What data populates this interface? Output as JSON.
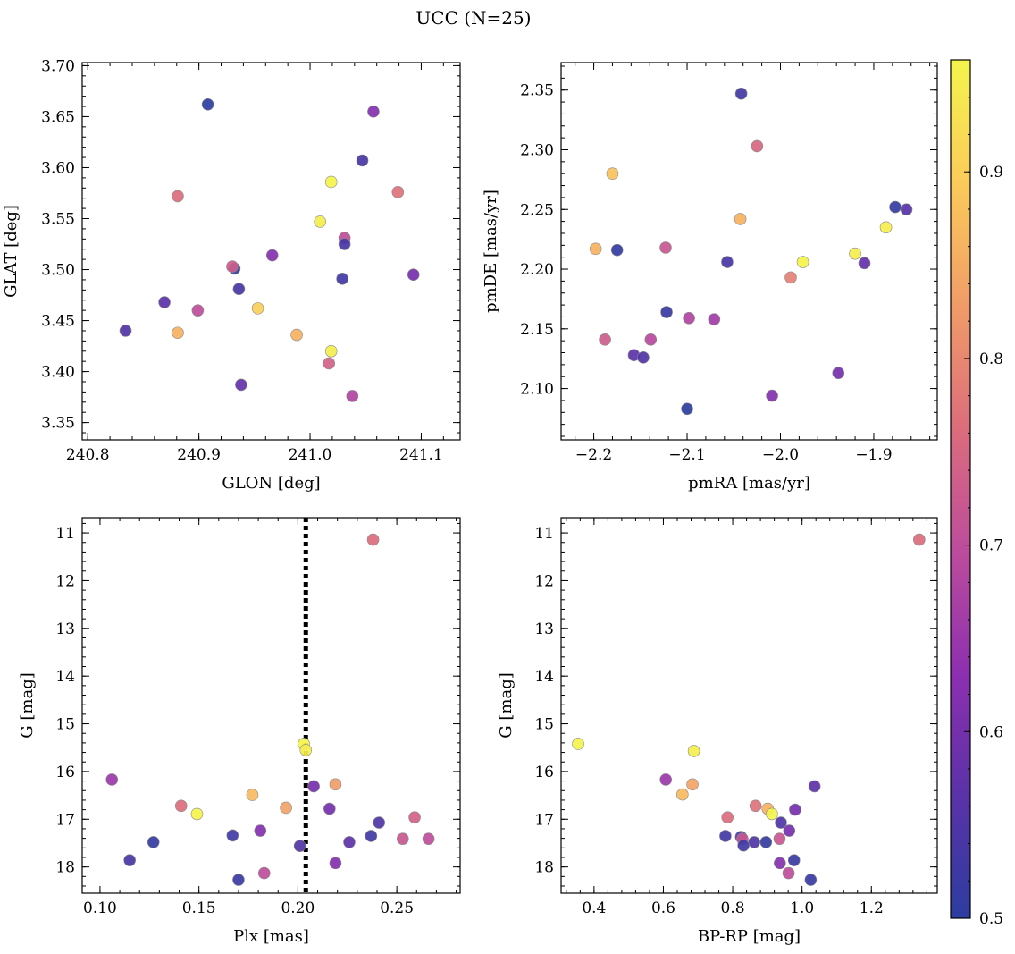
{
  "figure_title": "UCC (N=25)",
  "colorbar": {
    "range": [
      0.5,
      0.96
    ],
    "ticks": [
      0.5,
      0.6,
      0.7,
      0.8,
      0.9
    ],
    "tick_labels": [
      "0.5",
      "0.6",
      "0.7",
      "0.8",
      "0.9"
    ],
    "colors": [
      "#2c3da0",
      "#5a32a8",
      "#8d2fb0",
      "#bd4c9c",
      "#dc6d7c",
      "#f19c68",
      "#fbcb5a",
      "#f4f44c"
    ]
  },
  "chart_data": [
    {
      "type": "scatter",
      "name": "glon-glat",
      "xlabel": "GLON [deg]",
      "ylabel": "GLAT [deg]",
      "xlim": [
        240.795,
        241.135
      ],
      "ylim": [
        3.333,
        3.703
      ],
      "xticks": [
        240.8,
        240.9,
        241.0,
        241.1
      ],
      "xtick_labels": [
        "240.8",
        "240.9",
        "241.0",
        "241.1"
      ],
      "yticks": [
        3.35,
        3.4,
        3.45,
        3.5,
        3.55,
        3.6,
        3.65,
        3.7
      ],
      "ytick_labels": [
        "3.35",
        "3.40",
        "3.45",
        "3.50",
        "3.55",
        "3.60",
        "3.65",
        "3.70"
      ],
      "x": [
        240.908,
        240.834,
        240.869,
        240.932,
        240.936,
        240.938,
        240.899,
        240.93,
        240.881,
        240.881,
        240.953,
        240.966,
        240.988,
        241.009,
        241.019,
        241.019,
        241.017,
        241.031,
        241.031,
        241.029,
        241.038,
        241.047,
        241.057,
        241.079,
        241.093
      ],
      "y": [
        3.662,
        3.44,
        3.468,
        3.501,
        3.481,
        3.387,
        3.46,
        3.503,
        3.572,
        3.438,
        3.462,
        3.514,
        3.436,
        3.547,
        3.586,
        3.42,
        3.408,
        3.531,
        3.525,
        3.491,
        3.376,
        3.607,
        3.655,
        3.576,
        3.495
      ],
      "c": [
        0.5,
        0.55,
        0.57,
        0.52,
        0.54,
        0.58,
        0.7,
        0.73,
        0.76,
        0.86,
        0.9,
        0.62,
        0.86,
        0.95,
        0.96,
        0.95,
        0.74,
        0.7,
        0.54,
        0.53,
        0.68,
        0.54,
        0.62,
        0.77,
        0.6
      ]
    },
    {
      "type": "scatter",
      "name": "pm",
      "xlabel": "pmRA [mas/yr]",
      "ylabel": "pmDE [mas/yr]",
      "xlim": [
        -2.235,
        -1.832
      ],
      "ylim": [
        2.057,
        2.373
      ],
      "xticks": [
        -2.2,
        -2.1,
        -2.0,
        -1.9
      ],
      "xtick_labels": [
        "−2.2",
        "−2.1",
        "−2.0",
        "−1.9"
      ],
      "yticks": [
        2.1,
        2.15,
        2.2,
        2.25,
        2.3,
        2.35
      ],
      "ytick_labels": [
        "2.10",
        "2.15",
        "2.20",
        "2.25",
        "2.30",
        "2.35"
      ],
      "x": [
        -2.042,
        -2.025,
        -2.18,
        -2.043,
        -2.198,
        -2.175,
        -2.123,
        -1.877,
        -1.865,
        -1.887,
        -1.92,
        -1.976,
        -1.91,
        -1.989,
        -2.057,
        -2.122,
        -2.098,
        -2.071,
        -2.139,
        -2.188,
        -2.157,
        -2.147,
        -1.938,
        -2.009,
        -2.1
      ],
      "y": [
        2.347,
        2.303,
        2.28,
        2.242,
        2.217,
        2.216,
        2.218,
        2.252,
        2.25,
        2.235,
        2.213,
        2.206,
        2.205,
        2.193,
        2.206,
        2.164,
        2.159,
        2.158,
        2.141,
        2.141,
        2.128,
        2.126,
        2.113,
        2.094,
        2.083
      ],
      "c": [
        0.53,
        0.75,
        0.88,
        0.86,
        0.86,
        0.51,
        0.72,
        0.51,
        0.56,
        0.95,
        0.95,
        0.96,
        0.58,
        0.79,
        0.54,
        0.52,
        0.68,
        0.66,
        0.69,
        0.73,
        0.57,
        0.55,
        0.6,
        0.62,
        0.5
      ]
    },
    {
      "type": "scatter",
      "name": "plx-g",
      "xlabel": "Plx [mas]",
      "ylabel": "G [mag]",
      "xlim": [
        0.091,
        0.282
      ],
      "ylim": [
        18.55,
        10.68
      ],
      "xticks": [
        0.1,
        0.15,
        0.2,
        0.25
      ],
      "xtick_labels": [
        "0.10",
        "0.15",
        "0.20",
        "0.25"
      ],
      "yticks": [
        11,
        12,
        13,
        14,
        15,
        16,
        17,
        18
      ],
      "ytick_labels": [
        "11",
        "12",
        "13",
        "14",
        "15",
        "16",
        "17",
        "18"
      ],
      "vline_x": 0.204,
      "x": [
        0.238,
        0.203,
        0.204,
        0.106,
        0.219,
        0.208,
        0.177,
        0.141,
        0.194,
        0.149,
        0.216,
        0.259,
        0.241,
        0.253,
        0.266,
        0.237,
        0.226,
        0.181,
        0.201,
        0.167,
        0.127,
        0.115,
        0.219,
        0.183,
        0.17
      ],
      "y": [
        11.14,
        15.42,
        15.55,
        16.17,
        16.27,
        16.31,
        16.49,
        16.72,
        16.76,
        16.89,
        16.78,
        16.96,
        17.07,
        17.41,
        17.41,
        17.35,
        17.48,
        17.24,
        17.56,
        17.34,
        17.48,
        17.86,
        17.92,
        18.13,
        18.27
      ],
      "c": [
        0.76,
        0.96,
        0.95,
        0.65,
        0.83,
        0.6,
        0.87,
        0.76,
        0.84,
        0.96,
        0.6,
        0.74,
        0.55,
        0.72,
        0.7,
        0.53,
        0.57,
        0.62,
        0.55,
        0.53,
        0.51,
        0.54,
        0.62,
        0.7,
        0.52
      ]
    },
    {
      "type": "scatter",
      "name": "cmd",
      "xlabel": "BP-RP [mag]",
      "ylabel": "G [mag]",
      "xlim": [
        0.305,
        1.39
      ],
      "ylim": [
        18.55,
        10.68
      ],
      "xticks": [
        0.4,
        0.6,
        0.8,
        1.0,
        1.2
      ],
      "xtick_labels": [
        "0.4",
        "0.6",
        "0.8",
        "1.0",
        "1.2"
      ],
      "yticks": [
        11,
        12,
        13,
        14,
        15,
        16,
        17,
        18
      ],
      "ytick_labels": [
        "11",
        "12",
        "13",
        "14",
        "15",
        "16",
        "17",
        "18"
      ],
      "x": [
        1.338,
        0.354,
        0.688,
        0.607,
        0.684,
        0.655,
        1.036,
        0.866,
        0.901,
        0.913,
        0.785,
        0.98,
        0.939,
        0.963,
        0.824,
        0.828,
        0.862,
        0.935,
        0.896,
        0.779,
        0.977,
        0.936,
        0.961,
        1.025,
        0.831
      ],
      "y": [
        11.14,
        15.42,
        15.57,
        16.17,
        16.27,
        16.48,
        16.31,
        16.72,
        16.78,
        16.89,
        16.96,
        16.8,
        17.07,
        17.24,
        17.37,
        17.41,
        17.48,
        17.41,
        17.48,
        17.35,
        17.86,
        17.92,
        18.13,
        18.27,
        17.55
      ],
      "c": [
        0.76,
        0.96,
        0.95,
        0.65,
        0.84,
        0.87,
        0.57,
        0.77,
        0.86,
        0.96,
        0.76,
        0.6,
        0.55,
        0.6,
        0.53,
        0.72,
        0.55,
        0.72,
        0.51,
        0.53,
        0.52,
        0.62,
        0.7,
        0.52,
        0.53
      ]
    }
  ]
}
